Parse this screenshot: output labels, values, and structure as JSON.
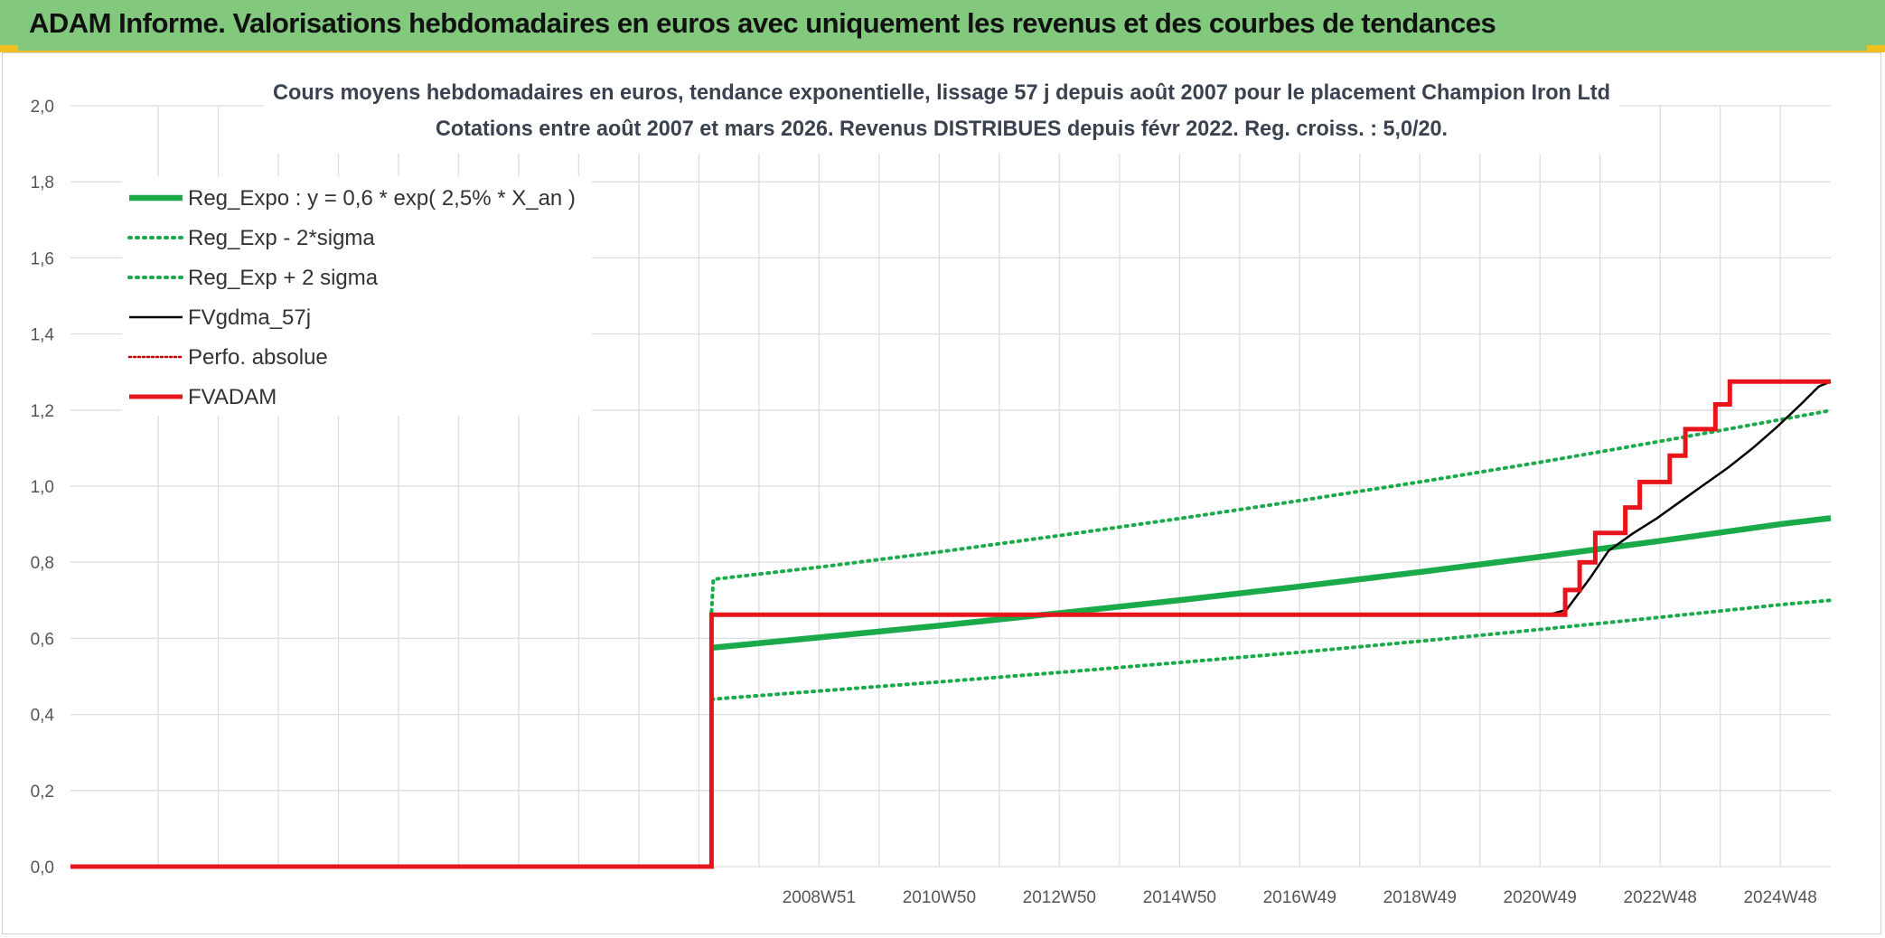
{
  "header": {
    "banner_title": "ADAM Informe. Valorisations hebdomadaires en euros avec uniquement les revenus et des courbes de tendances"
  },
  "colors": {
    "banner_bg": "#82c97e",
    "reg_green": "#1aaa4a",
    "red": "#e8141c",
    "black": "#000000",
    "grid": "#dddddd"
  },
  "chart_data": {
    "type": "line",
    "title": "Cours moyens hebdomadaires en euros, tendance exponentielle, lissage 57 j depuis août 2007 pour le placement Champion Iron Ltd",
    "subtitle": "Cotations entre août 2007 et mars 2026. Revenus DISTRIBUES depuis févr 2022. Reg. croiss. : 5,0/20.",
    "ylim": [
      0,
      2.0
    ],
    "xlim": [
      1996.5,
      2025.8
    ],
    "yticks": [
      "0,0",
      "0,2",
      "0,4",
      "0,6",
      "0,8",
      "1,0",
      "1,2",
      "1,4",
      "1,6",
      "1,8",
      "2,0"
    ],
    "xticks": [
      {
        "label": "2008W51",
        "x": 2008.96
      },
      {
        "label": "2010W50",
        "x": 2010.96
      },
      {
        "label": "2012W50",
        "x": 2012.96
      },
      {
        "label": "2014W50",
        "x": 2014.96
      },
      {
        "label": "2016W49",
        "x": 2016.96
      },
      {
        "label": "2018W49",
        "x": 2018.96
      },
      {
        "label": "2020W49",
        "x": 2020.96
      },
      {
        "label": "2022W48",
        "x": 2022.96
      },
      {
        "label": "2024W48",
        "x": 2024.96
      }
    ],
    "grid": true,
    "legend_position": "top-left",
    "series": [
      {
        "name": "Reg_Expo : y = 0,6 * exp( 2,5% *  X_an )",
        "color": "#1aaa4a",
        "style": "solid-thick",
        "points": [
          [
            2007.17,
            0.575
          ],
          [
            2009,
            0.603
          ],
          [
            2011,
            0.634
          ],
          [
            2013,
            0.667
          ],
          [
            2015,
            0.701
          ],
          [
            2017,
            0.737
          ],
          [
            2019,
            0.775
          ],
          [
            2021,
            0.815
          ],
          [
            2023,
            0.857
          ],
          [
            2025,
            0.901
          ],
          [
            2025.8,
            0.916
          ]
        ]
      },
      {
        "name": "Reg_Exp - 2*sigma",
        "color": "#1aaa4a",
        "style": "dotted",
        "points": [
          [
            2007.17,
            0.44
          ],
          [
            2009,
            0.462
          ],
          [
            2011,
            0.486
          ],
          [
            2013,
            0.511
          ],
          [
            2015,
            0.537
          ],
          [
            2017,
            0.564
          ],
          [
            2019,
            0.593
          ],
          [
            2021,
            0.624
          ],
          [
            2023,
            0.656
          ],
          [
            2025,
            0.689
          ],
          [
            2025.8,
            0.7
          ]
        ]
      },
      {
        "name": "Reg_Exp + 2 sigma",
        "color": "#1aaa4a",
        "style": "dotted",
        "points": [
          [
            2007.17,
            0.67
          ],
          [
            2007.2,
            0.755
          ],
          [
            2009,
            0.788
          ],
          [
            2011,
            0.828
          ],
          [
            2013,
            0.871
          ],
          [
            2015,
            0.916
          ],
          [
            2017,
            0.963
          ],
          [
            2019,
            1.012
          ],
          [
            2021,
            1.064
          ],
          [
            2023,
            1.119
          ],
          [
            2025,
            1.176
          ],
          [
            2025.8,
            1.199
          ]
        ]
      },
      {
        "name": "FVgdma_57j",
        "color": "#000000",
        "style": "solid-thin",
        "points": [
          [
            1996.5,
            0
          ],
          [
            2007.17,
            0
          ],
          [
            2007.17,
            0.662
          ],
          [
            2021.1,
            0.662
          ],
          [
            2021.4,
            0.675
          ],
          [
            2021.8,
            0.76
          ],
          [
            2022.1,
            0.83
          ],
          [
            2022.5,
            0.875
          ],
          [
            2022.9,
            0.915
          ],
          [
            2023.3,
            0.96
          ],
          [
            2023.7,
            1.005
          ],
          [
            2024.1,
            1.05
          ],
          [
            2024.5,
            1.1
          ],
          [
            2024.9,
            1.155
          ],
          [
            2025.3,
            1.215
          ],
          [
            2025.6,
            1.262
          ],
          [
            2025.8,
            1.275
          ]
        ]
      },
      {
        "name": "Perfo. absolue",
        "color": "#c00000",
        "style": "dotted-thin",
        "points": []
      },
      {
        "name": "FVADAM",
        "color": "#e8141c",
        "style": "solid-thick",
        "points": [
          [
            1996.5,
            0
          ],
          [
            2007.17,
            0
          ],
          [
            2007.17,
            0.662
          ],
          [
            2021.38,
            0.662
          ],
          [
            2021.38,
            0.727
          ],
          [
            2021.62,
            0.727
          ],
          [
            2021.62,
            0.8
          ],
          [
            2021.88,
            0.8
          ],
          [
            2021.88,
            0.877
          ],
          [
            2022.38,
            0.877
          ],
          [
            2022.38,
            0.944
          ],
          [
            2022.62,
            0.944
          ],
          [
            2022.62,
            1.011
          ],
          [
            2023.12,
            1.011
          ],
          [
            2023.12,
            1.08
          ],
          [
            2023.38,
            1.08
          ],
          [
            2023.38,
            1.15
          ],
          [
            2023.88,
            1.15
          ],
          [
            2023.88,
            1.215
          ],
          [
            2024.12,
            1.215
          ],
          [
            2024.12,
            1.275
          ],
          [
            2025.8,
            1.275
          ]
        ]
      }
    ]
  }
}
